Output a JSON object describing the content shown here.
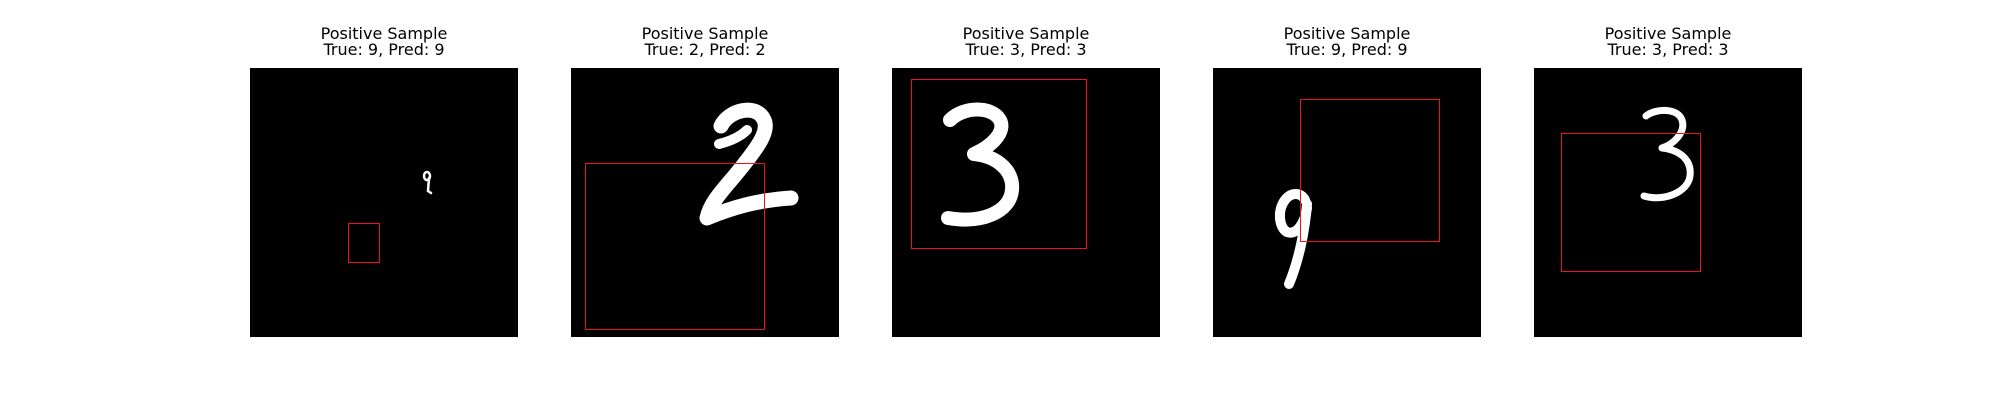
{
  "samples": [
    {
      "label": "Positive Sample",
      "caption": "True: 9, Pred: 9",
      "digit": "9"
    },
    {
      "label": "Positive Sample",
      "caption": "True: 2, Pred: 2",
      "digit": "2"
    },
    {
      "label": "Positive Sample",
      "caption": "True: 3, Pred: 3",
      "digit": "3"
    },
    {
      "label": "Positive Sample",
      "caption": "True: 9, Pred: 9",
      "digit": "9"
    },
    {
      "label": "Positive Sample",
      "caption": "True: 3, Pred: 3",
      "digit": "3"
    }
  ],
  "colors": {
    "background": "#000000",
    "digit": "#ffffff",
    "bbox": "#e8161a"
  }
}
